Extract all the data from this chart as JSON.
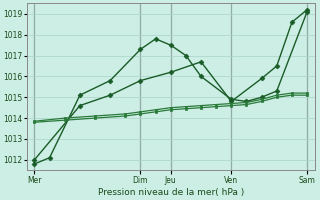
{
  "background_color": "#cceee4",
  "grid_color": "#aad4c8",
  "line_color_dark": "#1a5c28",
  "line_color_mid": "#2a7a3a",
  "xlabel": "Pression niveau de la mer( hPa )",
  "ylim": [
    1011.5,
    1019.5
  ],
  "yticks": [
    1012,
    1013,
    1014,
    1015,
    1016,
    1017,
    1018,
    1019
  ],
  "x_day_labels": [
    "Mer",
    "Dim",
    "Jeu",
    "Ven",
    "Sam"
  ],
  "x_day_positions": [
    0,
    7,
    9,
    13,
    18
  ],
  "total_points": 19,
  "lines": [
    {
      "x": [
        0,
        1,
        3,
        5,
        7,
        8,
        9,
        10,
        11,
        13,
        14,
        15,
        16,
        18
      ],
      "y": [
        1011.8,
        1012.1,
        1015.1,
        1015.8,
        1017.3,
        1017.8,
        1017.5,
        1017.0,
        1016.0,
        1014.9,
        1014.8,
        1015.0,
        1015.3,
        1019.1
      ],
      "style": "-",
      "marker": "D",
      "markersize": 2.5,
      "linewidth": 1.0,
      "color": "#1a5c28"
    },
    {
      "x": [
        0,
        3,
        5,
        7,
        9,
        11,
        13,
        15,
        16,
        17,
        18
      ],
      "y": [
        1012.0,
        1014.6,
        1015.1,
        1015.8,
        1016.2,
        1016.7,
        1014.8,
        1015.9,
        1016.5,
        1018.6,
        1019.2
      ],
      "style": "-",
      "marker": "D",
      "markersize": 2.5,
      "linewidth": 1.0,
      "color": "#1a5c28"
    },
    {
      "x": [
        0,
        2,
        4,
        6,
        7,
        8,
        9,
        10,
        11,
        12,
        13,
        14,
        15,
        16,
        17,
        18
      ],
      "y": [
        1013.8,
        1013.9,
        1014.0,
        1014.1,
        1014.2,
        1014.3,
        1014.4,
        1014.45,
        1014.5,
        1014.55,
        1014.6,
        1014.65,
        1014.8,
        1015.0,
        1015.1,
        1015.1
      ],
      "style": "-",
      "marker": "s",
      "markersize": 1.8,
      "linewidth": 0.9,
      "color": "#2a7a3a"
    },
    {
      "x": [
        0,
        2,
        4,
        6,
        7,
        8,
        9,
        10,
        11,
        12,
        13,
        14,
        15,
        16,
        17,
        18
      ],
      "y": [
        1013.85,
        1014.0,
        1014.1,
        1014.2,
        1014.3,
        1014.4,
        1014.5,
        1014.55,
        1014.6,
        1014.65,
        1014.7,
        1014.75,
        1014.9,
        1015.1,
        1015.2,
        1015.2
      ],
      "style": "-",
      "marker": "s",
      "markersize": 1.8,
      "linewidth": 0.9,
      "color": "#2a7a3a"
    }
  ]
}
